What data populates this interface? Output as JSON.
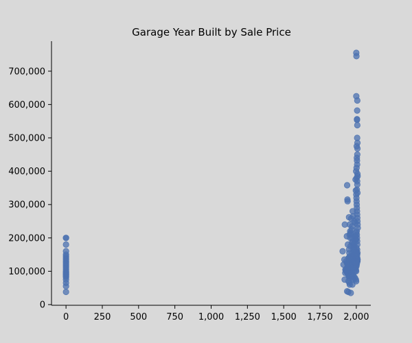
{
  "chart_data": {
    "type": "scatter",
    "title": "Garage Year Built by Sale Price",
    "xlabel": "",
    "ylabel": "",
    "xlim": [
      -100,
      2100
    ],
    "ylim": [
      -2000,
      790000
    ],
    "xticks": [
      0,
      250,
      500,
      750,
      1000,
      1250,
      1500,
      1750,
      2000
    ],
    "xtick_labels": [
      "0",
      "250",
      "500",
      "750",
      "1,000",
      "1,250",
      "1,500",
      "1,750",
      "2,000"
    ],
    "yticks": [
      0,
      100000,
      200000,
      300000,
      400000,
      500000,
      600000,
      700000
    ],
    "ytick_labels": [
      "0",
      "100,000",
      "200,000",
      "300,000",
      "400,000",
      "500,000",
      "600,000",
      "700,000"
    ],
    "grid": false,
    "point_color": "#4c72b0",
    "background": "#d9d9d9",
    "series": [
      {
        "x": [
          0,
          0,
          0,
          0,
          0,
          0,
          0,
          0,
          0,
          0,
          0,
          0,
          0,
          0,
          0,
          0,
          0,
          0,
          0,
          0,
          0,
          0,
          0,
          0,
          0,
          0,
          2000,
          2001,
          2000,
          2007,
          2006,
          2005,
          2005,
          2007,
          2006,
          2008,
          2003,
          2008,
          2007,
          2004,
          2005,
          2006,
          2002,
          1999,
          2008,
          2009,
          2003,
          2006,
          1995,
          2007,
          2004,
          1997,
          2008,
          1937,
          1939,
          1940,
          1955,
          1965,
          1950,
          1921,
          1935,
          1954,
          1958,
          1942,
          1960,
          1906,
          1918,
          1912,
          1928,
          1965,
          1962,
          1949,
          1920,
          1946,
          1953,
          1955,
          1973,
          1937,
          1945,
          1962,
          1975,
          1978,
          1986,
          1993,
          1972,
          1968,
          1961,
          1990,
          1998,
          1970,
          1977,
          1986,
          1995,
          1999,
          1964,
          1974,
          1980,
          1989,
          1992,
          1966,
          1976,
          1983,
          1991,
          1997,
          1999,
          2000,
          2001,
          2002,
          2003,
          2004,
          2005,
          2006,
          2007,
          2008,
          2009,
          2010,
          2003,
          2004,
          2005,
          2006,
          2007,
          2001,
          2002,
          2005,
          2007,
          2008,
          1958,
          1963,
          1970,
          1976,
          1980,
          1985,
          1990,
          1994,
          1996,
          1998,
          1956,
          1960,
          1967,
          1972,
          1979,
          1984,
          1988,
          1993,
          1997,
          1999,
          1950,
          1952,
          1955,
          1957,
          1959,
          1961,
          1962,
          1965,
          1967,
          1969,
          1948,
          1951,
          1954,
          1958,
          1961,
          1964,
          1968,
          1971,
          1974,
          1977,
          1979,
          1982,
          1985,
          1987,
          1990,
          1993,
          1995,
          1997,
          1999,
          2001,
          2003,
          2005,
          2007,
          2009,
          2002,
          2004,
          2006,
          2008,
          2000,
          2006,
          1930,
          1935,
          1940,
          1945,
          1925,
          1932,
          1938,
          1944,
          1948,
          1953,
          1941,
          1936,
          1930,
          1924,
          1947
        ],
        "y": [
          200000,
          200000,
          180000,
          160000,
          150000,
          145000,
          140000,
          135000,
          130000,
          125000,
          120000,
          115000,
          110000,
          105000,
          100000,
          97000,
          95000,
          92000,
          90000,
          88000,
          85000,
          82000,
          75000,
          65000,
          55000,
          38000,
          755000,
          745000,
          625000,
          612000,
          582000,
          556000,
          554000,
          538000,
          500000,
          485000,
          475000,
          468000,
          450000,
          440000,
          432000,
          420000,
          410000,
          400000,
          392000,
          385000,
          380000,
          370000,
          375000,
          360000,
          345000,
          342000,
          335000,
          358000,
          315000,
          310000,
          240000,
          258000,
          262000,
          240000,
          205000,
          210000,
          200000,
          180000,
          175000,
          160000,
          135000,
          120000,
          105000,
          98000,
          92000,
          85000,
          75000,
          70000,
          65000,
          60000,
          60000,
          40000,
          38000,
          35000,
          280000,
          265000,
          250000,
          245000,
          235000,
          225000,
          215000,
          205000,
          195000,
          185000,
          175000,
          165000,
          155000,
          145000,
          135000,
          125000,
          115000,
          110000,
          100000,
          95000,
          90000,
          85000,
          80000,
          75000,
          70000,
          330000,
          320000,
          310000,
          300000,
          290000,
          280000,
          270000,
          260000,
          250000,
          240000,
          230000,
          220000,
          210000,
          200000,
          190000,
          180000,
          170000,
          160000,
          150000,
          140000,
          130000,
          220000,
          210000,
          200000,
          190000,
          180000,
          170000,
          160000,
          150000,
          140000,
          130000,
          125000,
          135000,
          145000,
          155000,
          165000,
          175000,
          185000,
          195000,
          205000,
          215000,
          165000,
          155000,
          145000,
          135000,
          125000,
          115000,
          105000,
          100000,
          95000,
          90000,
          140000,
          130000,
          120000,
          110000,
          100000,
          95000,
          90000,
          85000,
          80000,
          75000,
          150000,
          140000,
          130000,
          125000,
          120000,
          115000,
          110000,
          105000,
          100000,
          115000,
          120000,
          125000,
          130000,
          135000,
          140000,
          145000,
          150000,
          155000,
          160000,
          165000,
          130000,
          125000,
          120000,
          110000,
          105000,
          100000,
          95000,
          90000,
          85000,
          80000,
          115000,
          110000,
          100000,
          95000,
          140000
        ]
      }
    ]
  }
}
